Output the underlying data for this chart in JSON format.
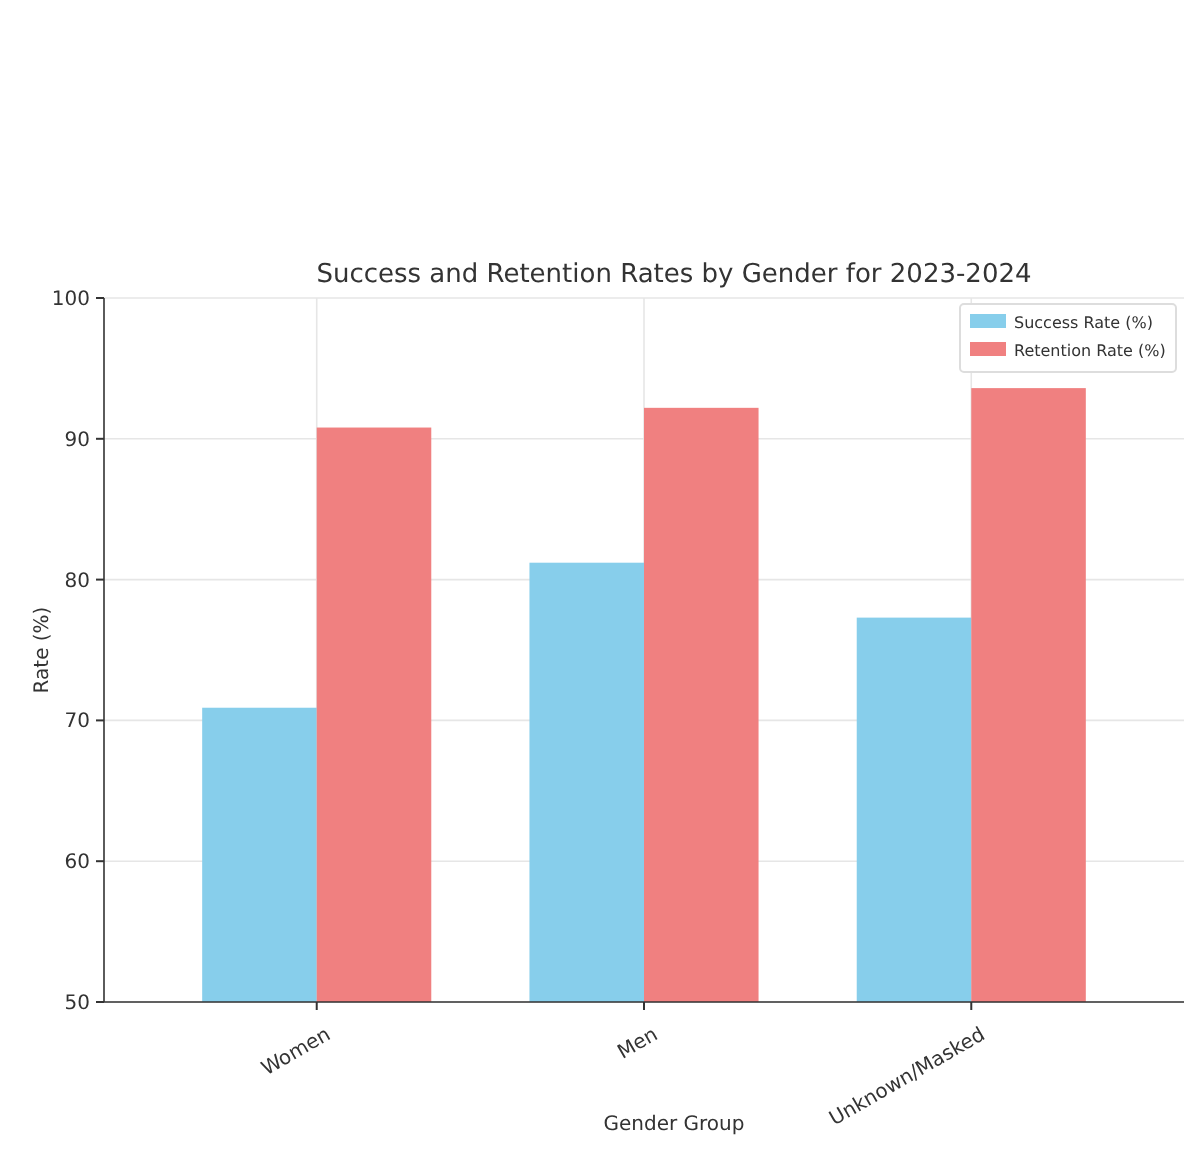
{
  "chart_data": {
    "type": "bar",
    "title": "Success and Retention Rates by Gender for 2023-2024",
    "xlabel": "Gender Group",
    "ylabel": "Rate (%)",
    "categories": [
      "Women",
      "Men",
      "Unknown/Masked"
    ],
    "series": [
      {
        "name": "Success Rate (%)",
        "color": "#87ceeb",
        "values": [
          70.9,
          81.2,
          77.3
        ]
      },
      {
        "name": "Retention Rate (%)",
        "color": "#f08080",
        "values": [
          90.8,
          92.2,
          93.6
        ]
      }
    ],
    "ylim": [
      50,
      100
    ],
    "yticks": [
      50,
      60,
      70,
      80,
      90,
      100
    ],
    "grid": true,
    "legend": "top right"
  }
}
